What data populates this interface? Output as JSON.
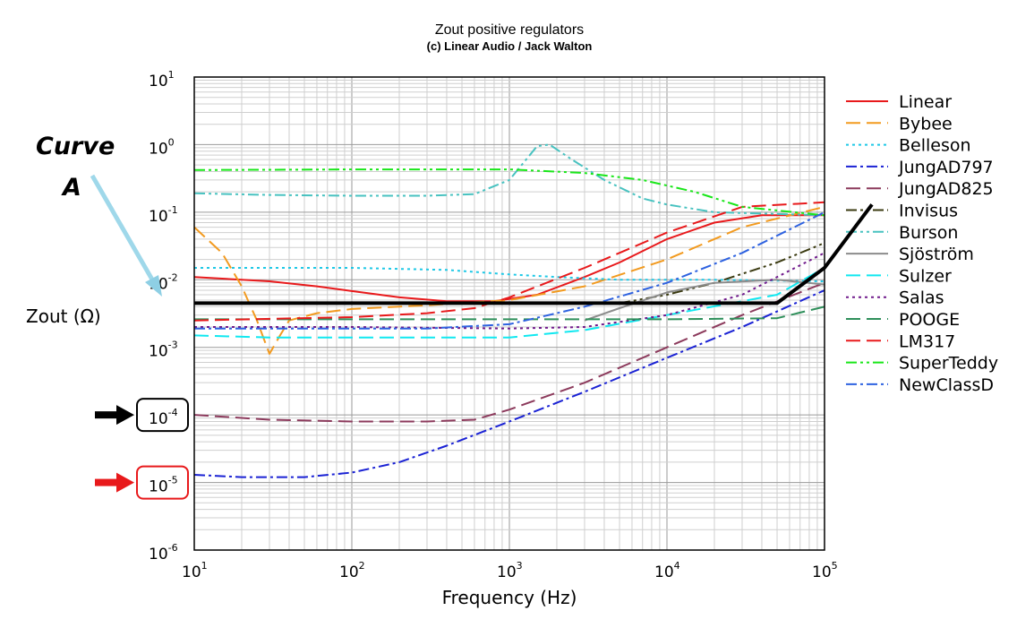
{
  "chart_data": {
    "type": "line",
    "title": "Zout positive regulators",
    "subtitle": "(c) Linear Audio / Jack Walton",
    "xlabel": "Frequency (Hz)",
    "ylabel": "Zout (Ω)",
    "x_scale": "log",
    "y_scale": "log",
    "xlim": [
      10,
      100000
    ],
    "ylim": [
      1e-06,
      10
    ],
    "x_ticks": [
      {
        "base": "10",
        "exp": "1"
      },
      {
        "base": "10",
        "exp": "2"
      },
      {
        "base": "10",
        "exp": "3"
      },
      {
        "base": "10",
        "exp": "4"
      },
      {
        "base": "10",
        "exp": "5"
      }
    ],
    "y_ticks": [
      {
        "base": "10",
        "exp": "1"
      },
      {
        "base": "10",
        "exp": "0"
      },
      {
        "base": "10",
        "exp": "-1"
      },
      {
        "base": "10",
        "exp": "-2"
      },
      {
        "base": "10",
        "exp": "-3"
      },
      {
        "base": "10",
        "exp": "-4"
      },
      {
        "base": "10",
        "exp": "-5"
      },
      {
        "base": "10",
        "exp": "-6"
      }
    ],
    "grid": true,
    "legend_position": "right",
    "series": [
      {
        "name": "Linear",
        "color": "#e8191b",
        "dash": "solid",
        "points": [
          [
            10,
            0.011
          ],
          [
            30,
            0.0095
          ],
          [
            60,
            0.008
          ],
          [
            100,
            0.0068
          ],
          [
            200,
            0.0055
          ],
          [
            400,
            0.0048
          ],
          [
            800,
            0.0048
          ],
          [
            1500,
            0.006
          ],
          [
            3000,
            0.011
          ],
          [
            5000,
            0.018
          ],
          [
            10000,
            0.04
          ],
          [
            20000,
            0.07
          ],
          [
            40000,
            0.09
          ],
          [
            100000,
            0.09
          ]
        ]
      },
      {
        "name": "Bybee",
        "color": "#f29a1f",
        "dash": "longdash",
        "points": [
          [
            10,
            0.06
          ],
          [
            15,
            0.025
          ],
          [
            20,
            0.008
          ],
          [
            25,
            0.0025
          ],
          [
            30,
            0.0008
          ],
          [
            35,
            0.0015
          ],
          [
            40,
            0.0025
          ],
          [
            60,
            0.0032
          ],
          [
            100,
            0.0037
          ],
          [
            300,
            0.0042
          ],
          [
            1000,
            0.005
          ],
          [
            3000,
            0.008
          ],
          [
            10000,
            0.02
          ],
          [
            30000,
            0.06
          ],
          [
            100000,
            0.12
          ]
        ]
      },
      {
        "name": "Belleson",
        "color": "#1ec8e6",
        "dash": "dotted",
        "points": [
          [
            10,
            0.015
          ],
          [
            100,
            0.015
          ],
          [
            400,
            0.014
          ],
          [
            1000,
            0.012
          ],
          [
            2000,
            0.011
          ],
          [
            5000,
            0.01
          ],
          [
            20000,
            0.01
          ],
          [
            100000,
            0.0095
          ]
        ]
      },
      {
        "name": "JungAD797",
        "color": "#1a22d4",
        "dash": "dashdot",
        "points": [
          [
            10,
            1.3e-05
          ],
          [
            20,
            1.2e-05
          ],
          [
            50,
            1.2e-05
          ],
          [
            100,
            1.4e-05
          ],
          [
            200,
            2e-05
          ],
          [
            400,
            3.5e-05
          ],
          [
            1000,
            8e-05
          ],
          [
            3000,
            0.00022
          ],
          [
            10000,
            0.0007
          ],
          [
            30000,
            0.002
          ],
          [
            100000,
            0.007
          ]
        ]
      },
      {
        "name": "JungAD825",
        "color": "#8c3a5c",
        "dash": "longdash",
        "points": [
          [
            10,
            0.0001
          ],
          [
            30,
            8.5e-05
          ],
          [
            100,
            8e-05
          ],
          [
            300,
            8e-05
          ],
          [
            600,
            8.5e-05
          ],
          [
            1000,
            0.00012
          ],
          [
            3000,
            0.0003
          ],
          [
            10000,
            0.001
          ],
          [
            30000,
            0.003
          ],
          [
            100000,
            0.009
          ]
        ]
      },
      {
        "name": "Invisus",
        "color": "#3a3a10",
        "dash": "dashdotdot",
        "points": [
          [
            5000,
            0.0045
          ],
          [
            10000,
            0.006
          ],
          [
            20000,
            0.009
          ],
          [
            50000,
            0.018
          ],
          [
            100000,
            0.035
          ]
        ]
      },
      {
        "name": "Burson",
        "color": "#48c2c0",
        "dash": "dashdotdot",
        "points": [
          [
            10,
            0.19
          ],
          [
            30,
            0.18
          ],
          [
            100,
            0.175
          ],
          [
            300,
            0.175
          ],
          [
            600,
            0.185
          ],
          [
            1000,
            0.3
          ],
          [
            1500,
            0.95
          ],
          [
            1800,
            1.0
          ],
          [
            2500,
            0.6
          ],
          [
            4000,
            0.3
          ],
          [
            7000,
            0.16
          ],
          [
            10000,
            0.13
          ],
          [
            20000,
            0.1
          ],
          [
            100000,
            0.09
          ]
        ]
      },
      {
        "name": "Sjöström",
        "color": "#8c8c8c",
        "dash": "solid",
        "points": [
          [
            3000,
            0.0025
          ],
          [
            5000,
            0.0038
          ],
          [
            10000,
            0.0065
          ],
          [
            20000,
            0.009
          ],
          [
            50000,
            0.01
          ],
          [
            100000,
            0.0085
          ]
        ]
      },
      {
        "name": "Sulzer",
        "color": "#10e8f0",
        "dash": "longdash",
        "points": [
          [
            10,
            0.0015
          ],
          [
            30,
            0.0014
          ],
          [
            100,
            0.0014
          ],
          [
            300,
            0.0014
          ],
          [
            1000,
            0.0014
          ],
          [
            3000,
            0.0018
          ],
          [
            10000,
            0.003
          ],
          [
            50000,
            0.006
          ],
          [
            100000,
            0.015
          ]
        ]
      },
      {
        "name": "Salas",
        "color": "#701a8c",
        "dash": "dotted",
        "points": [
          [
            10,
            0.002
          ],
          [
            100,
            0.002
          ],
          [
            1000,
            0.0019
          ],
          [
            3000,
            0.002
          ],
          [
            10000,
            0.003
          ],
          [
            30000,
            0.006
          ],
          [
            100000,
            0.025
          ]
        ]
      },
      {
        "name": "POOGE",
        "color": "#2e8f5a",
        "dash": "longdash",
        "points": [
          [
            10,
            0.0026
          ],
          [
            100,
            0.0026
          ],
          [
            1000,
            0.0026
          ],
          [
            10000,
            0.0026
          ],
          [
            50000,
            0.0027
          ],
          [
            100000,
            0.004
          ]
        ]
      },
      {
        "name": "LM317",
        "color": "#e8191b",
        "dash": "longdash",
        "points": [
          [
            10,
            0.0025
          ],
          [
            100,
            0.0028
          ],
          [
            300,
            0.0032
          ],
          [
            600,
            0.0038
          ],
          [
            1000,
            0.0055
          ],
          [
            3000,
            0.015
          ],
          [
            10000,
            0.05
          ],
          [
            30000,
            0.12
          ],
          [
            100000,
            0.14
          ]
        ]
      },
      {
        "name": "SuperTeddy",
        "color": "#19e619",
        "dash": "dashdotdot",
        "points": [
          [
            10,
            0.42
          ],
          [
            100,
            0.43
          ],
          [
            1000,
            0.43
          ],
          [
            3000,
            0.38
          ],
          [
            7000,
            0.3
          ],
          [
            15000,
            0.2
          ],
          [
            30000,
            0.12
          ],
          [
            100000,
            0.09
          ]
        ]
      },
      {
        "name": "NewClassD",
        "color": "#2e62e0",
        "dash": "dashdot",
        "points": [
          [
            10,
            0.0019
          ],
          [
            100,
            0.0019
          ],
          [
            300,
            0.0019
          ],
          [
            1000,
            0.0022
          ],
          [
            3000,
            0.004
          ],
          [
            10000,
            0.009
          ],
          [
            30000,
            0.025
          ],
          [
            100000,
            0.1
          ]
        ]
      }
    ],
    "annotations": {
      "curve_label_line1": "Curve",
      "curve_label_line2": "A",
      "curve_a_points": [
        [
          10,
          0.0045
        ],
        [
          50000,
          0.0045
        ],
        [
          100000,
          0.015
        ]
      ],
      "curve_a_extended_endpoint": [
        200000,
        0.13
      ],
      "highlight_black_tick": "-4",
      "highlight_red_tick": "-5",
      "arrow_colors": {
        "curve": "#9fd8ea",
        "black": "#000000",
        "red": "#e8191b"
      }
    }
  }
}
